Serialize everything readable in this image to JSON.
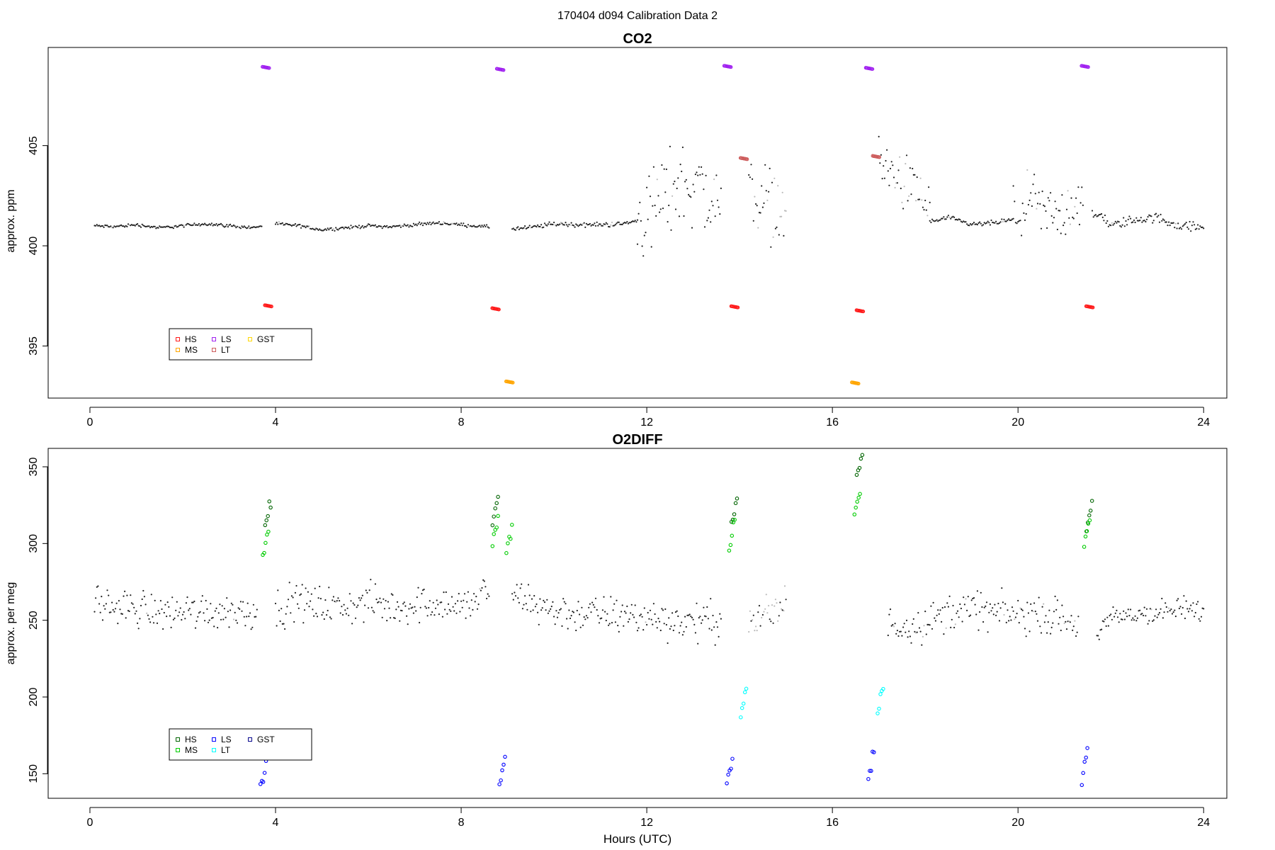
{
  "page_title": "170404   d094   Calibration Data 2",
  "colors": {
    "background": "#ffffff",
    "ambient": "#222222",
    "ambient_flagged": "#bbbbbb",
    "HS_co2": "#ff1a1a",
    "MS_co2": "#ffa500",
    "LS_co2": "#a020f0",
    "LT_co2": "#cd5c5c",
    "GST_co2": "#ffd700",
    "HS_o2": "#006400",
    "MS_o2": "#00cc00",
    "LS_o2": "#0000ff",
    "LT_o2": "#00ffff",
    "GST_o2": "#00008b"
  },
  "chart_data": [
    {
      "type": "scatter",
      "title": "CO2",
      "xlabel": "",
      "ylabel": "approx. ppm",
      "xlim": [
        -0.9,
        24.5
      ],
      "ylim": [
        392.4,
        409.9
      ],
      "xticks": [
        0,
        4,
        8,
        12,
        16,
        20,
        24
      ],
      "xtick_labels": [
        "0",
        "4",
        "8",
        "12",
        "16",
        "20",
        "24"
      ],
      "yticks": [
        395,
        400,
        405
      ],
      "ytick_labels": [
        "395",
        "400",
        "405"
      ],
      "grid": false,
      "legend": {
        "placement": "bottom-left",
        "entries": [
          {
            "label": "HS",
            "color_key": "HS_co2"
          },
          {
            "label": "MS",
            "color_key": "MS_co2"
          },
          {
            "label": "LS",
            "color_key": "LS_co2"
          },
          {
            "label": "LT",
            "color_key": "LT_co2"
          },
          {
            "label": "GST",
            "color_key": "GST_co2"
          }
        ]
      },
      "ambient_segments": [
        {
          "x": [
            0.1,
            0.5,
            1.0,
            1.5,
            2.0,
            2.5,
            3.0,
            3.5,
            3.7
          ],
          "y": [
            401.0,
            400.95,
            401.05,
            400.9,
            401.0,
            401.1,
            401.0,
            400.9,
            401.0
          ],
          "noise": 0.04,
          "flag_prob": 0.02
        },
        {
          "x": [
            4.0,
            4.5,
            5.0,
            5.5,
            6.0,
            6.5,
            7.0,
            7.5,
            8.0,
            8.5,
            8.6
          ],
          "y": [
            401.1,
            401.0,
            400.8,
            400.9,
            401.0,
            400.95,
            401.05,
            401.15,
            401.05,
            400.95,
            400.95
          ],
          "noise": 0.04,
          "flag_prob": 0.02
        },
        {
          "x": [
            9.1,
            9.5,
            10.0,
            10.5,
            11.0,
            11.5,
            11.8
          ],
          "y": [
            400.85,
            400.9,
            401.1,
            401.05,
            401.05,
            401.1,
            401.25
          ],
          "noise": 0.06,
          "flag_prob": 0.02
        },
        {
          "x": [
            11.8,
            12.2,
            12.6,
            13.0,
            13.3,
            13.6
          ],
          "y": [
            401.3,
            402.0,
            403.0,
            403.2,
            402.5,
            402.0
          ],
          "noise": 1.1,
          "flag_prob": 0.08
        },
        {
          "x": [
            14.2,
            14.5,
            14.8,
            15.0
          ],
          "y": [
            403.0,
            402.3,
            402.0,
            401.3
          ],
          "noise": 0.9,
          "flag_prob": 0.45
        },
        {
          "x": [
            17.0,
            17.3,
            17.6,
            17.9,
            18.1
          ],
          "y": [
            404.3,
            403.5,
            403.0,
            402.5,
            401.8
          ],
          "noise": 0.7,
          "flag_prob": 0.25
        },
        {
          "x": [
            18.1,
            18.5,
            19.0,
            19.5,
            19.9
          ],
          "y": [
            401.2,
            401.4,
            401.05,
            401.15,
            401.3
          ],
          "noise": 0.06,
          "flag_prob": 0.02
        },
        {
          "x": [
            19.9,
            20.3,
            20.6,
            21.0,
            21.3,
            21.4
          ],
          "y": [
            401.5,
            402.2,
            401.5,
            401.6,
            402.5,
            401.5
          ],
          "noise": 0.7,
          "flag_prob": 0.05
        },
        {
          "x": [
            21.6,
            21.8,
            22.0,
            22.5,
            23.0,
            23.5,
            24.0
          ],
          "y": [
            401.5,
            401.5,
            401.0,
            401.3,
            401.4,
            401.0,
            400.9
          ],
          "noise": 0.12,
          "flag_prob": 0.02
        }
      ],
      "calibration_series": [
        {
          "name": "LS",
          "color_key": "LS_co2",
          "clusters": [
            {
              "x": 3.8,
              "y": 408.9
            },
            {
              "x": 8.85,
              "y": 408.8
            },
            {
              "x": 13.75,
              "y": 408.95
            },
            {
              "x": 16.8,
              "y": 408.85
            },
            {
              "x": 21.45,
              "y": 408.95
            }
          ]
        },
        {
          "name": "HS",
          "color_key": "HS_co2",
          "clusters": [
            {
              "x": 3.85,
              "y": 397.0
            },
            {
              "x": 8.75,
              "y": 396.85
            },
            {
              "x": 13.9,
              "y": 396.95
            },
            {
              "x": 16.6,
              "y": 396.75
            },
            {
              "x": 21.55,
              "y": 396.95
            }
          ]
        },
        {
          "name": "MS",
          "color_key": "MS_co2",
          "clusters": [
            {
              "x": 9.05,
              "y": 393.2
            },
            {
              "x": 16.5,
              "y": 393.15
            }
          ]
        },
        {
          "name": "LT",
          "color_key": "LT_co2",
          "clusters": [
            {
              "x": 14.1,
              "y": 404.35
            },
            {
              "x": 16.95,
              "y": 404.45
            }
          ]
        }
      ]
    },
    {
      "type": "scatter",
      "title": "O2DIFF",
      "xlabel": "Hours (UTC)",
      "ylabel": "approx. per meg",
      "xlim": [
        -0.9,
        24.5
      ],
      "ylim": [
        134,
        362
      ],
      "xticks": [
        0,
        4,
        8,
        12,
        16,
        20,
        24
      ],
      "xtick_labels": [
        "0",
        "4",
        "8",
        "12",
        "16",
        "20",
        "24"
      ],
      "yticks": [
        150,
        200,
        250,
        300,
        350
      ],
      "ytick_labels": [
        "150",
        "200",
        "250",
        "300",
        "350"
      ],
      "grid": false,
      "legend": {
        "placement": "bottom-left",
        "entries": [
          {
            "label": "HS",
            "color_key": "HS_o2"
          },
          {
            "label": "MS",
            "color_key": "MS_o2"
          },
          {
            "label": "LS",
            "color_key": "LS_o2"
          },
          {
            "label": "LT",
            "color_key": "LT_o2"
          },
          {
            "label": "GST",
            "color_key": "GST_o2"
          }
        ]
      },
      "ambient_segments": [
        {
          "x": [
            0.1,
            0.5,
            1.0,
            1.5,
            2.0,
            2.5,
            3.0,
            3.6
          ],
          "y": [
            264,
            258,
            258,
            255,
            256,
            256,
            256,
            257
          ],
          "noise": 6,
          "flag_prob": 0.02
        },
        {
          "x": [
            4.0,
            4.5,
            5.0,
            5.5,
            6.0,
            6.5,
            7.0,
            7.5,
            8.0,
            8.4,
            8.6
          ],
          "y": [
            257,
            262,
            260,
            258,
            262,
            258,
            260,
            262,
            258,
            265,
            270
          ],
          "noise": 6,
          "flag_prob": 0.02
        },
        {
          "x": [
            9.1,
            9.5,
            10.0,
            10.5,
            11.0,
            11.5,
            12.0,
            12.5,
            13.0,
            13.5,
            13.6
          ],
          "y": [
            265,
            262,
            256,
            254,
            254,
            253,
            252,
            250,
            249,
            250,
            250
          ],
          "noise": 6,
          "flag_prob": 0.02
        },
        {
          "x": [
            14.2,
            14.5,
            14.8,
            15.0
          ],
          "y": [
            248,
            252,
            256,
            260
          ],
          "noise": 7,
          "flag_prob": 0.45
        },
        {
          "x": [
            17.2,
            17.6,
            18.0,
            18.5,
            19.0,
            19.5,
            20.0,
            20.5,
            21.0,
            21.3
          ],
          "y": [
            248,
            247,
            248,
            255,
            258,
            255,
            253,
            255,
            250,
            245
          ],
          "noise": 6,
          "flag_prob": 0.1
        },
        {
          "x": [
            21.7,
            22.0,
            22.5,
            23.0,
            23.5,
            24.0
          ],
          "y": [
            243,
            250,
            254,
            255,
            257,
            256
          ],
          "noise": 4,
          "flag_prob": 0.02
        }
      ],
      "calibration_series": [
        {
          "name": "HS",
          "color_key": "HS_o2",
          "clusters": [
            {
              "x": 3.85,
              "y": 321
            },
            {
              "x": 8.75,
              "y": 324
            },
            {
              "x": 13.9,
              "y": 325
            },
            {
              "x": 16.6,
              "y": 352
            },
            {
              "x": 21.55,
              "y": 321
            }
          ]
        },
        {
          "name": "MS",
          "color_key": "MS_o2",
          "clusters": [
            {
              "x": 3.8,
              "y": 305
            },
            {
              "x": 8.75,
              "y": 312
            },
            {
              "x": 9.05,
              "y": 305
            },
            {
              "x": 13.85,
              "y": 308
            },
            {
              "x": 16.55,
              "y": 330
            },
            {
              "x": 21.5,
              "y": 310
            }
          ]
        },
        {
          "name": "LS",
          "color_key": "LS_o2",
          "clusters": [
            {
              "x": 3.75,
              "y": 150
            },
            {
              "x": 8.9,
              "y": 155
            },
            {
              "x": 13.8,
              "y": 153
            },
            {
              "x": 16.85,
              "y": 157
            },
            {
              "x": 21.45,
              "y": 157
            }
          ]
        },
        {
          "name": "LT",
          "color_key": "LT_o2",
          "clusters": [
            {
              "x": 14.1,
              "y": 199
            },
            {
              "x": 17.05,
              "y": 200
            }
          ]
        }
      ]
    }
  ]
}
